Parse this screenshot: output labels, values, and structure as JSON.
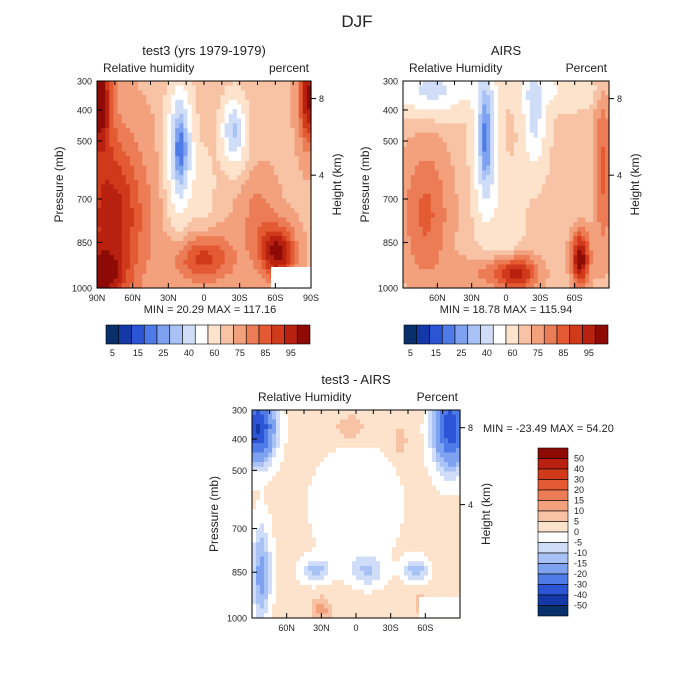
{
  "suptitle": "DJF",
  "chart_data": [
    {
      "type": "heatmap",
      "title": "test3 (yrs 1979-1979)",
      "left_label": "Relative humidity",
      "right_label": "percent",
      "ylabel": "Pressure (mb)",
      "y2label": "Height (km)",
      "x_ticks": [
        "90N",
        "60N",
        "30N",
        "0",
        "30S",
        "60S",
        "90S"
      ],
      "y_ticks": [
        "300",
        "400",
        "500",
        "700",
        "850",
        "1000"
      ],
      "y2_ticks": [
        "8",
        "4"
      ],
      "xlim": [
        90,
        -90
      ],
      "ylim": [
        1000,
        300
      ],
      "stats": "MIN =  20.29   MAX = 117.16",
      "colorbar": {
        "orientation": "horizontal",
        "labels": [
          "5",
          "15",
          "25",
          "40",
          "60",
          "75",
          "85",
          "95"
        ],
        "colors": [
          "#08306b",
          "#1438a8",
          "#2c55d6",
          "#4f7be8",
          "#7ea2f0",
          "#a8c2f5",
          "#cfddf8",
          "#ffffff",
          "#fde3cc",
          "#f8c3a4",
          "#f3a07d",
          "#ec7c56",
          "#e35a33",
          "#d0391a",
          "#b82010",
          "#8e0a05"
        ]
      }
    },
    {
      "type": "heatmap",
      "title": "AIRS",
      "left_label": "Relative Humidity",
      "right_label": "Percent",
      "ylabel": "Pressure (mb)",
      "y2label": "Height (km)",
      "x_ticks": [
        "60N",
        "30N",
        "0",
        "30S",
        "60S"
      ],
      "y_ticks": [
        "300",
        "400",
        "500",
        "700",
        "850",
        "1000"
      ],
      "y2_ticks": [
        "8",
        "4"
      ],
      "xlim": [
        90,
        -90
      ],
      "ylim": [
        1000,
        300
      ],
      "stats": "MIN =  18.78   MAX = 115.94",
      "colorbar": {
        "orientation": "horizontal",
        "labels": [
          "5",
          "15",
          "25",
          "40",
          "60",
          "75",
          "85",
          "95"
        ],
        "colors": [
          "#08306b",
          "#1438a8",
          "#2c55d6",
          "#4f7be8",
          "#7ea2f0",
          "#a8c2f5",
          "#cfddf8",
          "#ffffff",
          "#fde3cc",
          "#f8c3a4",
          "#f3a07d",
          "#ec7c56",
          "#e35a33",
          "#d0391a",
          "#b82010",
          "#8e0a05"
        ]
      }
    },
    {
      "type": "heatmap",
      "title": "test3 - AIRS",
      "left_label": "Relative Humidity",
      "right_label": "Percent",
      "ylabel": "Pressure (mb)",
      "y2label": "Height (km)",
      "x_ticks": [
        "60N",
        "30N",
        "0",
        "30S",
        "60S"
      ],
      "y_ticks": [
        "300",
        "400",
        "500",
        "700",
        "850",
        "1000"
      ],
      "y2_ticks": [
        "8",
        "4"
      ],
      "xlim": [
        90,
        -90
      ],
      "ylim": [
        1000,
        300
      ],
      "stats": "MIN = -23.49   MAX =  54.20",
      "colorbar": {
        "orientation": "vertical",
        "labels": [
          "50",
          "40",
          "30",
          "20",
          "15",
          "10",
          "5",
          "0",
          "-5",
          "-10",
          "-15",
          "-20",
          "-30",
          "-40",
          "-50"
        ],
        "colors": [
          "#8e0a05",
          "#b82010",
          "#d0391a",
          "#e35a33",
          "#ec7c56",
          "#f3a07d",
          "#f8c3a4",
          "#fde3cc",
          "#ffffff",
          "#cfddf8",
          "#a8c2f5",
          "#7ea2f0",
          "#4f7be8",
          "#2c55d6",
          "#1438a8",
          "#08306b"
        ]
      }
    }
  ]
}
